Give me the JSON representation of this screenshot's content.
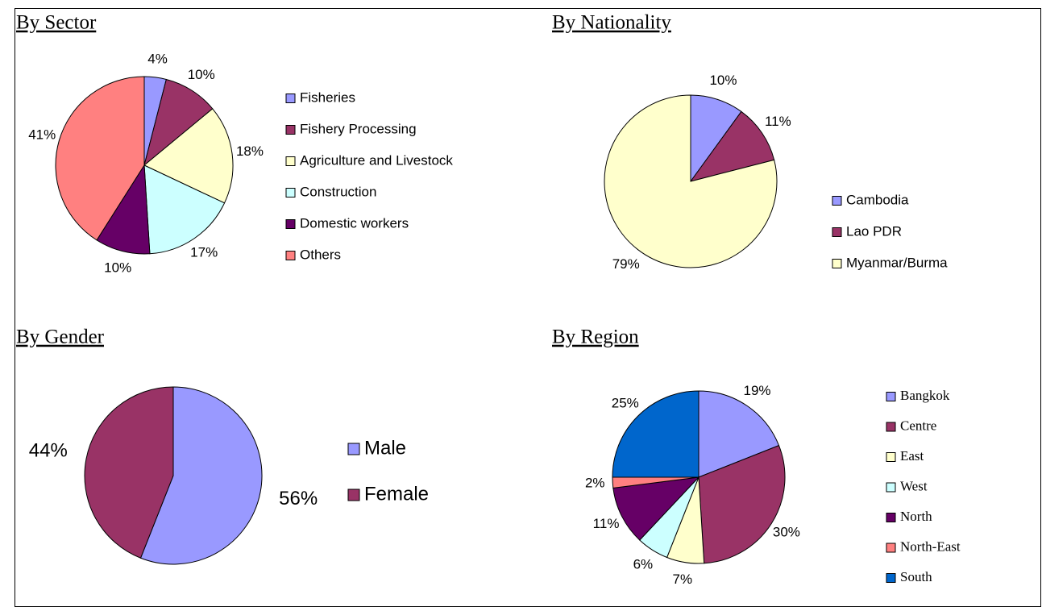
{
  "chart_data": [
    {
      "type": "pie",
      "title": "By Sector",
      "categories": [
        "Fisheries",
        "Fishery Processing",
        "Agriculture and Livestock",
        "Construction",
        "Domestic workers",
        "Others"
      ],
      "values": [
        4,
        10,
        18,
        17,
        10,
        41
      ],
      "value_labels": [
        "4%",
        "10%",
        "18%",
        "17%",
        "10%",
        "41%"
      ],
      "colors": [
        "#9999ff",
        "#993366",
        "#ffffcc",
        "#ccffff",
        "#660066",
        "#ff8080"
      ]
    },
    {
      "type": "pie",
      "title": "By Nationality",
      "categories": [
        "Cambodia",
        "Lao PDR",
        "Myanmar/Burma"
      ],
      "values": [
        10,
        11,
        79
      ],
      "value_labels": [
        "10%",
        "11%",
        "79%"
      ],
      "colors": [
        "#9999ff",
        "#993366",
        "#ffffcc"
      ]
    },
    {
      "type": "pie",
      "title": "By Gender",
      "categories": [
        "Male",
        "Female"
      ],
      "values": [
        56,
        44
      ],
      "value_labels": [
        "56%",
        "44%"
      ],
      "colors": [
        "#9999ff",
        "#993366"
      ]
    },
    {
      "type": "pie",
      "title": "By Region",
      "categories": [
        "Bangkok",
        "Centre",
        "East",
        "West",
        "North",
        "North-East",
        "South"
      ],
      "values": [
        19,
        30,
        7,
        6,
        11,
        2,
        25
      ],
      "value_labels": [
        "19%",
        "30%",
        "7%",
        "6%",
        "11%",
        "2%",
        "25%"
      ],
      "colors": [
        "#9999ff",
        "#993366",
        "#ffffcc",
        "#ccffff",
        "#660066",
        "#ff8080",
        "#0066cc"
      ]
    }
  ]
}
